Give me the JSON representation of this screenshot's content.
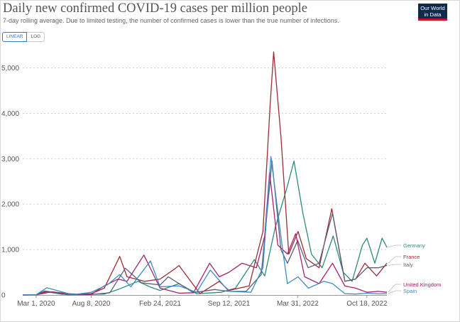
{
  "header": {
    "title": "Daily new confirmed COVID-19 cases per million people",
    "subtitle": "7-day rolling average. Due to limited testing, the number of confirmed cases is lower than the true number of infections.",
    "logo_line1": "Our World",
    "logo_line2": "in Data"
  },
  "controls": {
    "linear_label": "LINEAR",
    "log_label": "LOG",
    "selected": "LINEAR"
  },
  "colors": {
    "Germany": "#2e8b7a",
    "France": "#9e2c35",
    "Italy": "#5a5f78",
    "United Kingdom": "#a6226e",
    "Spain": "#3d8cc4"
  },
  "chart_data": {
    "type": "line",
    "title": "Daily new confirmed COVID-19 cases per million people",
    "subtitle": "7-day rolling average. Due to limited testing, the number of confirmed cases is lower than the true number of infections.",
    "ylim": [
      0,
      5400
    ],
    "yticks": [
      0,
      1000,
      2000,
      3000,
      4000,
      5000
    ],
    "ytick_labels": [
      "0",
      "1,000",
      "2,000",
      "3,000",
      "4,000",
      "5,000"
    ],
    "xticks": [
      "2020-03-01",
      "2020-08-08",
      "2021-02-24",
      "2021-09-12",
      "2022-03-31",
      "2022-10-18"
    ],
    "xtick_labels": [
      "Mar 1, 2020",
      "Aug 8, 2020",
      "Feb 24, 2021",
      "Sep 12, 2021",
      "Mar 31, 2022",
      "Oct 18, 2022"
    ],
    "xlim": [
      "2020-01-22",
      "2022-12-15"
    ],
    "grid": "horizontal dotted",
    "legend": "right-end labels",
    "series": [
      {
        "name": "Germany",
        "x": [
          "2020-01-22",
          "2020-03-01",
          "2020-04-01",
          "2020-05-15",
          "2020-09-15",
          "2020-10-25",
          "2020-12-22",
          "2021-01-25",
          "2021-02-24",
          "2021-04-20",
          "2021-06-10",
          "2021-08-20",
          "2021-10-01",
          "2021-11-25",
          "2021-12-25",
          "2022-01-25",
          "2022-03-01",
          "2022-03-20",
          "2022-04-15",
          "2022-05-10",
          "2022-06-10",
          "2022-07-12",
          "2022-08-10",
          "2022-09-05",
          "2022-10-05",
          "2022-10-18",
          "2022-11-10",
          "2022-12-01",
          "2022-12-15"
        ],
        "y": [
          0,
          5,
          70,
          15,
          20,
          120,
          300,
          180,
          100,
          250,
          30,
          60,
          150,
          780,
          420,
          1500,
          2400,
          2950,
          1800,
          900,
          600,
          1300,
          500,
          300,
          1100,
          1250,
          700,
          1250,
          1050
        ]
      },
      {
        "name": "France",
        "x": [
          "2020-01-22",
          "2020-03-01",
          "2020-04-01",
          "2020-06-01",
          "2020-08-08",
          "2020-09-15",
          "2020-10-30",
          "2020-11-20",
          "2021-01-10",
          "2021-02-24",
          "2021-04-05",
          "2021-04-20",
          "2021-06-20",
          "2021-08-15",
          "2021-09-12",
          "2021-11-10",
          "2021-12-20",
          "2022-01-10",
          "2022-01-20",
          "2022-02-10",
          "2022-03-05",
          "2022-04-01",
          "2022-04-25",
          "2022-06-01",
          "2022-07-08",
          "2022-08-15",
          "2022-09-15",
          "2022-10-12",
          "2022-11-15",
          "2022-12-15"
        ],
        "y": [
          0,
          5,
          80,
          10,
          30,
          150,
          850,
          400,
          300,
          350,
          560,
          650,
          30,
          300,
          100,
          200,
          1400,
          4200,
          5350,
          3500,
          900,
          1400,
          800,
          600,
          1900,
          300,
          350,
          700,
          420,
          700
        ]
      },
      {
        "name": "Italy",
        "x": [
          "2020-01-22",
          "2020-03-01",
          "2020-03-25",
          "2020-06-01",
          "2020-08-08",
          "2020-10-01",
          "2020-11-15",
          "2021-01-01",
          "2021-02-24",
          "2021-03-20",
          "2021-06-01",
          "2021-08-01",
          "2021-09-12",
          "2021-11-01",
          "2021-12-15",
          "2022-01-15",
          "2022-02-10",
          "2022-03-01",
          "2022-03-31",
          "2022-04-30",
          "2022-06-01",
          "2022-07-10",
          "2022-08-15",
          "2022-09-15",
          "2022-10-18",
          "2022-11-20",
          "2022-12-15"
        ],
        "y": [
          0,
          5,
          90,
          5,
          10,
          50,
          590,
          270,
          220,
          400,
          50,
          120,
          80,
          80,
          450,
          2950,
          1000,
          700,
          1200,
          600,
          700,
          1800,
          300,
          350,
          600,
          600,
          650
        ]
      },
      {
        "name": "United Kingdom",
        "x": [
          "2020-01-22",
          "2020-03-01",
          "2020-04-15",
          "2020-06-15",
          "2020-08-08",
          "2020-09-15",
          "2020-10-25",
          "2020-11-20",
          "2021-01-08",
          "2021-02-24",
          "2021-04-20",
          "2021-06-01",
          "2021-07-18",
          "2021-08-15",
          "2021-09-12",
          "2021-10-20",
          "2021-12-01",
          "2021-12-25",
          "2022-01-08",
          "2022-02-01",
          "2022-03-01",
          "2022-03-25",
          "2022-04-20",
          "2022-06-01",
          "2022-07-10",
          "2022-08-15",
          "2022-09-15",
          "2022-10-18",
          "2022-11-20",
          "2022-12-15"
        ],
        "y": [
          0,
          5,
          70,
          20,
          15,
          200,
          350,
          300,
          880,
          150,
          40,
          50,
          700,
          400,
          500,
          700,
          600,
          1300,
          2700,
          1100,
          900,
          1350,
          400,
          250,
          700,
          200,
          150,
          60,
          80,
          60
        ]
      },
      {
        "name": "Spain",
        "x": [
          "2020-01-22",
          "2020-03-01",
          "2020-04-01",
          "2020-06-15",
          "2020-08-08",
          "2020-09-25",
          "2020-10-30",
          "2020-12-01",
          "2021-01-27",
          "2021-02-24",
          "2021-04-20",
          "2021-06-10",
          "2021-07-20",
          "2021-09-12",
          "2021-11-15",
          "2021-12-20",
          "2022-01-12",
          "2022-02-15",
          "2022-03-01",
          "2022-04-01",
          "2022-05-01",
          "2022-06-15",
          "2022-07-10",
          "2022-08-15",
          "2022-09-15",
          "2022-10-18",
          "2022-11-20",
          "2022-12-15"
        ],
        "y": [
          0,
          5,
          160,
          5,
          60,
          230,
          450,
          180,
          750,
          180,
          200,
          60,
          550,
          80,
          60,
          600,
          3050,
          1000,
          250,
          400,
          150,
          300,
          250,
          30,
          20,
          40,
          25,
          30
        ]
      }
    ]
  }
}
